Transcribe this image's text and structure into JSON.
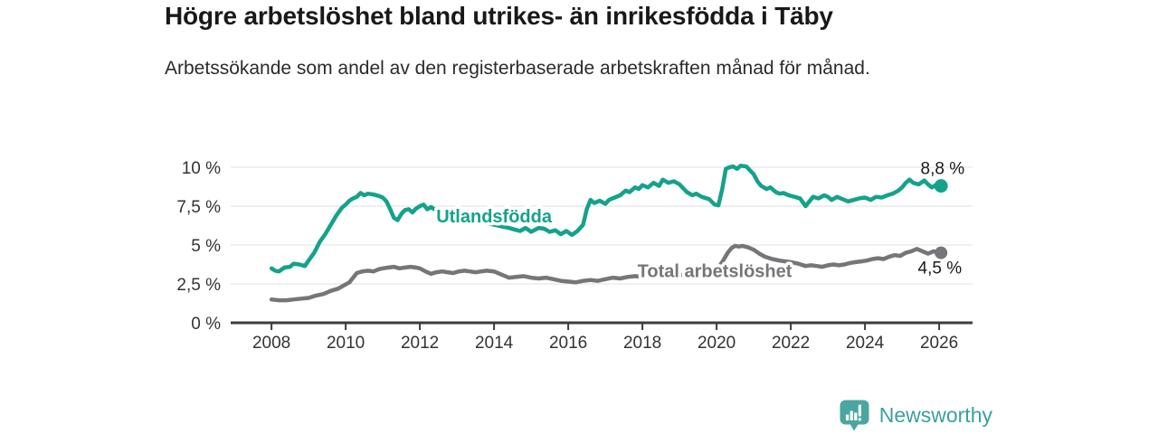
{
  "header": {
    "title": "Högre arbetslöshet bland utrikes- än inrikesfödda i Täby",
    "subtitle": "Arbetssökande som andel av den registerbaserade arbetskraften månad för månad."
  },
  "footer": {
    "brand": "Newsworthy",
    "logo_icon": "newsworthy-bar-chart-speech-bubble",
    "brand_color": "#3aa19a",
    "icon_color": "#4aa6a0"
  },
  "chart_data": {
    "type": "line",
    "title": "Högre arbetslöshet bland utrikes- än inrikesfödda i Täby",
    "subtitle": "Arbetssökande som andel av den registerbaserade arbetskraften månad för månad.",
    "xlabel": "",
    "ylabel": "",
    "grid": true,
    "legend": "inline-labels",
    "xlim": [
      2006.9,
      2026.9
    ],
    "ylim": [
      0,
      10.29
    ],
    "x_ticks": [
      2008,
      2010,
      2012,
      2014,
      2016,
      2018,
      2020,
      2022,
      2024,
      2026
    ],
    "y_ticks": [
      {
        "value": 0,
        "label": "0 %"
      },
      {
        "value": 2.5,
        "label": "2,5 %"
      },
      {
        "value": 5,
        "label": "5 %"
      },
      {
        "value": 7.5,
        "label": "7,5 %"
      },
      {
        "value": 10,
        "label": "10 %"
      }
    ],
    "series": [
      {
        "name": "Utlandsfödda",
        "color": "#14a28c",
        "end_label": "8,8 %",
        "end_value": 8.8,
        "end_label_position": "above",
        "label_pos": {
          "year": 2014.0,
          "value": 6.85
        },
        "points": [
          [
            2008.0,
            3.5
          ],
          [
            2008.1,
            3.35
          ],
          [
            2008.2,
            3.3
          ],
          [
            2008.35,
            3.55
          ],
          [
            2008.5,
            3.6
          ],
          [
            2008.6,
            3.8
          ],
          [
            2008.75,
            3.75
          ],
          [
            2008.9,
            3.65
          ],
          [
            2009.0,
            4.0
          ],
          [
            2009.15,
            4.5
          ],
          [
            2009.3,
            5.2
          ],
          [
            2009.45,
            5.7
          ],
          [
            2009.6,
            6.3
          ],
          [
            2009.75,
            6.9
          ],
          [
            2009.9,
            7.4
          ],
          [
            2010.0,
            7.6
          ],
          [
            2010.1,
            7.85
          ],
          [
            2010.2,
            8.0
          ],
          [
            2010.3,
            8.1
          ],
          [
            2010.4,
            8.35
          ],
          [
            2010.5,
            8.2
          ],
          [
            2010.6,
            8.3
          ],
          [
            2010.75,
            8.25
          ],
          [
            2010.9,
            8.15
          ],
          [
            2011.0,
            8.05
          ],
          [
            2011.1,
            7.8
          ],
          [
            2011.2,
            7.3
          ],
          [
            2011.3,
            6.75
          ],
          [
            2011.4,
            6.6
          ],
          [
            2011.5,
            7.0
          ],
          [
            2011.6,
            7.25
          ],
          [
            2011.7,
            7.3
          ],
          [
            2011.8,
            7.1
          ],
          [
            2011.9,
            7.35
          ],
          [
            2012.0,
            7.5
          ],
          [
            2012.1,
            7.6
          ],
          [
            2012.2,
            7.3
          ],
          [
            2012.3,
            7.45
          ],
          [
            2012.45,
            7.2
          ],
          [
            2012.6,
            7.1
          ],
          [
            2012.8,
            6.95
          ],
          [
            2013.0,
            6.85
          ],
          [
            2013.2,
            6.75
          ],
          [
            2013.4,
            6.65
          ],
          [
            2013.6,
            6.5
          ],
          [
            2013.8,
            6.4
          ],
          [
            2014.0,
            6.3
          ],
          [
            2014.2,
            6.2
          ],
          [
            2014.4,
            6.1
          ],
          [
            2014.55,
            6.0
          ],
          [
            2014.7,
            5.9
          ],
          [
            2014.85,
            6.1
          ],
          [
            2015.0,
            5.85
          ],
          [
            2015.2,
            6.1
          ],
          [
            2015.35,
            6.05
          ],
          [
            2015.5,
            5.85
          ],
          [
            2015.65,
            5.95
          ],
          [
            2015.8,
            5.7
          ],
          [
            2015.95,
            5.9
          ],
          [
            2016.1,
            5.65
          ],
          [
            2016.25,
            5.9
          ],
          [
            2016.4,
            6.3
          ],
          [
            2016.5,
            7.3
          ],
          [
            2016.6,
            7.9
          ],
          [
            2016.7,
            7.7
          ],
          [
            2016.85,
            7.85
          ],
          [
            2017.0,
            7.65
          ],
          [
            2017.1,
            7.9
          ],
          [
            2017.25,
            8.05
          ],
          [
            2017.4,
            8.2
          ],
          [
            2017.55,
            8.5
          ],
          [
            2017.65,
            8.4
          ],
          [
            2017.8,
            8.7
          ],
          [
            2017.9,
            8.6
          ],
          [
            2018.0,
            8.85
          ],
          [
            2018.15,
            8.7
          ],
          [
            2018.3,
            9.0
          ],
          [
            2018.45,
            8.8
          ],
          [
            2018.55,
            9.2
          ],
          [
            2018.7,
            9.0
          ],
          [
            2018.85,
            9.1
          ],
          [
            2019.0,
            8.9
          ],
          [
            2019.2,
            8.4
          ],
          [
            2019.35,
            8.2
          ],
          [
            2019.45,
            8.3
          ],
          [
            2019.6,
            8.1
          ],
          [
            2019.8,
            7.95
          ],
          [
            2019.95,
            7.6
          ],
          [
            2020.05,
            7.55
          ],
          [
            2020.15,
            8.6
          ],
          [
            2020.25,
            9.9
          ],
          [
            2020.35,
            10.0
          ],
          [
            2020.45,
            10.05
          ],
          [
            2020.55,
            9.9
          ],
          [
            2020.65,
            10.1
          ],
          [
            2020.8,
            10.05
          ],
          [
            2020.9,
            9.8
          ],
          [
            2021.0,
            9.55
          ],
          [
            2021.1,
            9.1
          ],
          [
            2021.2,
            8.8
          ],
          [
            2021.35,
            8.6
          ],
          [
            2021.45,
            8.7
          ],
          [
            2021.6,
            8.4
          ],
          [
            2021.7,
            8.3
          ],
          [
            2021.8,
            8.35
          ],
          [
            2021.95,
            8.2
          ],
          [
            2022.1,
            8.1
          ],
          [
            2022.25,
            8.0
          ],
          [
            2022.4,
            7.5
          ],
          [
            2022.5,
            7.8
          ],
          [
            2022.6,
            8.1
          ],
          [
            2022.75,
            8.0
          ],
          [
            2022.9,
            8.2
          ],
          [
            2023.0,
            8.1
          ],
          [
            2023.1,
            7.9
          ],
          [
            2023.25,
            8.1
          ],
          [
            2023.4,
            7.95
          ],
          [
            2023.55,
            7.8
          ],
          [
            2023.7,
            7.9
          ],
          [
            2023.85,
            8.0
          ],
          [
            2024.0,
            8.05
          ],
          [
            2024.15,
            7.9
          ],
          [
            2024.3,
            8.1
          ],
          [
            2024.45,
            8.05
          ],
          [
            2024.6,
            8.2
          ],
          [
            2024.75,
            8.3
          ],
          [
            2024.9,
            8.5
          ],
          [
            2025.0,
            8.7
          ],
          [
            2025.1,
            9.0
          ],
          [
            2025.2,
            9.2
          ],
          [
            2025.3,
            9.0
          ],
          [
            2025.45,
            8.9
          ],
          [
            2025.6,
            9.15
          ],
          [
            2025.7,
            8.9
          ],
          [
            2025.8,
            8.7
          ],
          [
            2025.95,
            8.9
          ],
          [
            2026.05,
            8.8
          ]
        ]
      },
      {
        "name": "Total arbetslöshet",
        "color": "#76767a",
        "end_label": "4,5 %",
        "end_value": 4.5,
        "end_label_position": "below",
        "label_pos": {
          "year": 2019.95,
          "value": 3.35
        },
        "points": [
          [
            2008.0,
            1.5
          ],
          [
            2008.2,
            1.45
          ],
          [
            2008.4,
            1.45
          ],
          [
            2008.6,
            1.5
          ],
          [
            2008.8,
            1.55
          ],
          [
            2009.0,
            1.6
          ],
          [
            2009.2,
            1.75
          ],
          [
            2009.4,
            1.85
          ],
          [
            2009.6,
            2.05
          ],
          [
            2009.8,
            2.2
          ],
          [
            2009.95,
            2.4
          ],
          [
            2010.1,
            2.6
          ],
          [
            2010.2,
            2.9
          ],
          [
            2010.3,
            3.2
          ],
          [
            2010.45,
            3.3
          ],
          [
            2010.6,
            3.35
          ],
          [
            2010.75,
            3.3
          ],
          [
            2010.9,
            3.45
          ],
          [
            2011.0,
            3.5
          ],
          [
            2011.15,
            3.55
          ],
          [
            2011.3,
            3.6
          ],
          [
            2011.45,
            3.5
          ],
          [
            2011.6,
            3.55
          ],
          [
            2011.75,
            3.6
          ],
          [
            2011.9,
            3.55
          ],
          [
            2012.0,
            3.5
          ],
          [
            2012.15,
            3.3
          ],
          [
            2012.3,
            3.15
          ],
          [
            2012.45,
            3.25
          ],
          [
            2012.6,
            3.3
          ],
          [
            2012.75,
            3.25
          ],
          [
            2012.9,
            3.2
          ],
          [
            2013.05,
            3.3
          ],
          [
            2013.2,
            3.35
          ],
          [
            2013.35,
            3.3
          ],
          [
            2013.5,
            3.25
          ],
          [
            2013.65,
            3.3
          ],
          [
            2013.8,
            3.35
          ],
          [
            2014.0,
            3.3
          ],
          [
            2014.2,
            3.1
          ],
          [
            2014.4,
            2.9
          ],
          [
            2014.6,
            2.95
          ],
          [
            2014.8,
            3.0
          ],
          [
            2015.0,
            2.9
          ],
          [
            2015.2,
            2.85
          ],
          [
            2015.4,
            2.9
          ],
          [
            2015.6,
            2.8
          ],
          [
            2015.8,
            2.7
          ],
          [
            2016.0,
            2.65
          ],
          [
            2016.2,
            2.6
          ],
          [
            2016.4,
            2.7
          ],
          [
            2016.6,
            2.75
          ],
          [
            2016.8,
            2.7
          ],
          [
            2017.0,
            2.8
          ],
          [
            2017.2,
            2.9
          ],
          [
            2017.4,
            2.85
          ],
          [
            2017.6,
            2.95
          ],
          [
            2017.8,
            3.0
          ],
          [
            2018.0,
            2.95
          ],
          [
            2018.2,
            3.0
          ],
          [
            2018.4,
            3.05
          ],
          [
            2018.6,
            3.0
          ],
          [
            2018.8,
            3.05
          ],
          [
            2019.0,
            3.1
          ],
          [
            2019.2,
            3.05
          ],
          [
            2019.4,
            3.1
          ],
          [
            2019.6,
            3.15
          ],
          [
            2019.8,
            3.2
          ],
          [
            2020.0,
            3.35
          ],
          [
            2020.15,
            3.9
          ],
          [
            2020.3,
            4.5
          ],
          [
            2020.4,
            4.8
          ],
          [
            2020.5,
            4.95
          ],
          [
            2020.6,
            4.9
          ],
          [
            2020.7,
            4.95
          ],
          [
            2020.85,
            4.85
          ],
          [
            2021.0,
            4.7
          ],
          [
            2021.15,
            4.45
          ],
          [
            2021.3,
            4.25
          ],
          [
            2021.5,
            4.1
          ],
          [
            2021.7,
            4.0
          ],
          [
            2021.85,
            3.95
          ],
          [
            2022.0,
            3.9
          ],
          [
            2022.2,
            3.8
          ],
          [
            2022.4,
            3.65
          ],
          [
            2022.55,
            3.7
          ],
          [
            2022.7,
            3.65
          ],
          [
            2022.85,
            3.6
          ],
          [
            2023.0,
            3.7
          ],
          [
            2023.15,
            3.75
          ],
          [
            2023.3,
            3.7
          ],
          [
            2023.45,
            3.75
          ],
          [
            2023.6,
            3.85
          ],
          [
            2023.75,
            3.9
          ],
          [
            2023.9,
            3.95
          ],
          [
            2024.05,
            4.0
          ],
          [
            2024.2,
            4.1
          ],
          [
            2024.35,
            4.15
          ],
          [
            2024.5,
            4.1
          ],
          [
            2024.65,
            4.25
          ],
          [
            2024.8,
            4.35
          ],
          [
            2024.95,
            4.3
          ],
          [
            2025.1,
            4.5
          ],
          [
            2025.25,
            4.6
          ],
          [
            2025.4,
            4.75
          ],
          [
            2025.55,
            4.6
          ],
          [
            2025.7,
            4.45
          ],
          [
            2025.85,
            4.6
          ],
          [
            2026.05,
            4.5
          ]
        ]
      }
    ]
  }
}
